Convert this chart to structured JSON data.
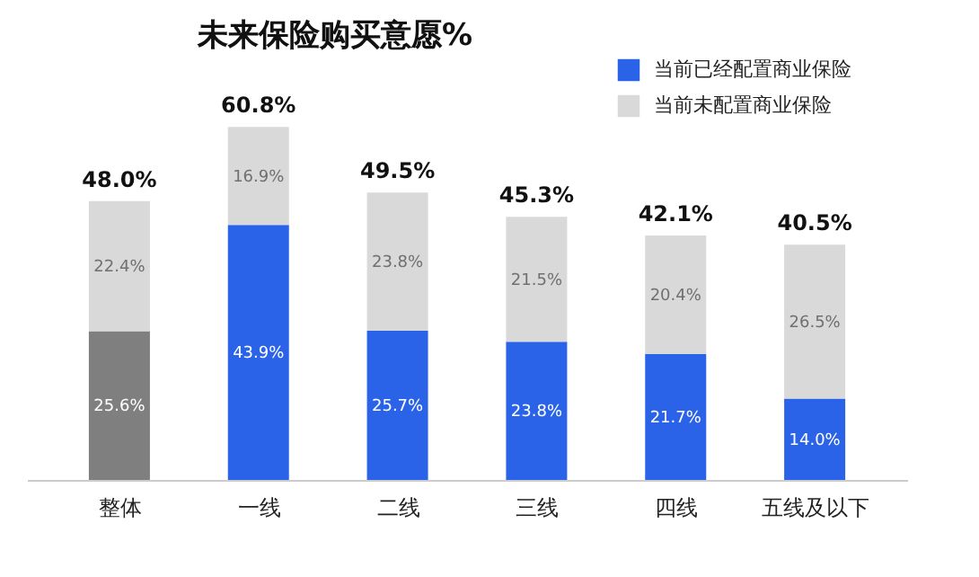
{
  "chart_data": {
    "type": "bar",
    "title": "未来保险购买意愿%",
    "stacked": true,
    "legend": "top right",
    "categories": [
      "整体",
      "一线",
      "二线",
      "三线",
      "四线",
      "五线及以下"
    ],
    "series": [
      {
        "name": "当前已经配置商业保险",
        "color": "#2b63e8",
        "colors": [
          "#7f7f7f",
          "#2b63e8",
          "#2b63e8",
          "#2b63e8",
          "#2b63e8",
          "#2b63e8"
        ],
        "values": [
          25.6,
          43.9,
          25.7,
          23.8,
          21.7,
          14.0
        ],
        "value_labels": [
          "25.6%",
          "43.9%",
          "25.7%",
          "23.8%",
          "21.7%",
          "14.0%"
        ]
      },
      {
        "name": "当前未配置商业保险",
        "color": "#d9d9d9",
        "values": [
          22.4,
          16.9,
          23.8,
          21.5,
          20.4,
          26.5
        ],
        "value_labels": [
          "22.4%",
          "16.9%",
          "23.8%",
          "21.5%",
          "20.4%",
          "26.5%"
        ]
      }
    ],
    "totals": [
      "48.0%",
      "60.8%",
      "49.5%",
      "45.3%",
      "42.1%",
      "40.5%"
    ]
  }
}
